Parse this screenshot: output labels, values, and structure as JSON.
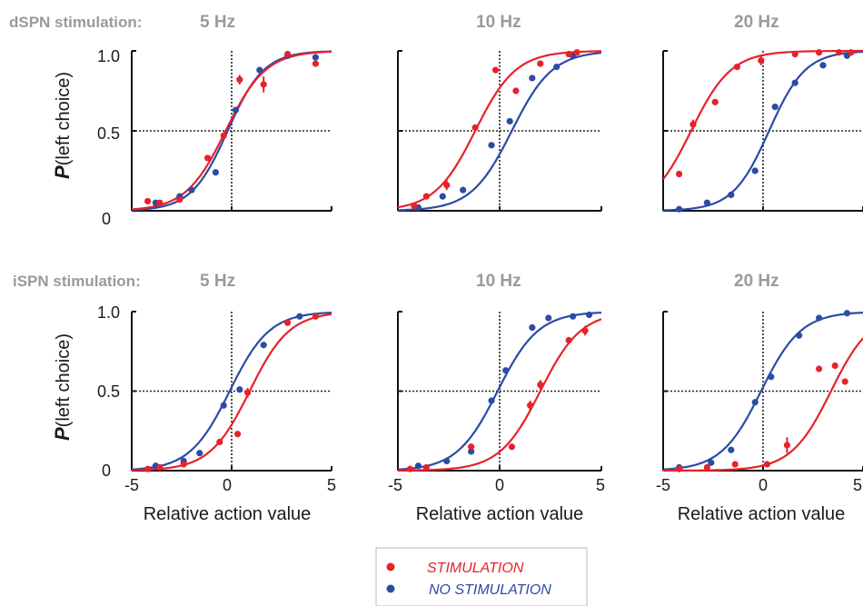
{
  "chart_data": {
    "type": "scatter",
    "row_titles": [
      "dSPN stimulation:",
      "iSPN stimulation:"
    ],
    "ylabel_bold": "P",
    "ylabel_rest": "(left choice)",
    "xlabel": "Relative action value",
    "xlim": [
      -5,
      5
    ],
    "ylim": [
      0,
      1
    ],
    "xticks": [
      "-5",
      "0",
      "5"
    ],
    "yticks": [
      "0",
      "0.5",
      "1.0"
    ],
    "legend": {
      "position": "bottom-center",
      "entries": [
        {
          "label": "STIMULATION",
          "color": "#e8212a"
        },
        {
          "label": "NO STIMULATION",
          "color": "#2b4ba6"
        }
      ]
    },
    "colors": {
      "stimulation": "#e8212a",
      "no_stimulation": "#2b4ba6"
    },
    "panels": [
      {
        "row": "dSPN",
        "freq": "5 Hz",
        "fits": {
          "stimulation": {
            "mid": -0.3,
            "slope": 1.0
          },
          "no_stimulation": {
            "mid": -0.2,
            "slope": 1.1
          }
        },
        "stimulation_points": {
          "x": [
            -4.2,
            -3.6,
            -2.6,
            -1.2,
            -0.4,
            0.4,
            1.6,
            2.8,
            4.2
          ],
          "y": [
            0.06,
            0.05,
            0.07,
            0.33,
            0.47,
            0.82,
            0.79,
            0.98,
            0.92
          ],
          "err": [
            0,
            0,
            0,
            0,
            0,
            0.03,
            0.05,
            0,
            0
          ]
        },
        "no_stimulation_points": {
          "x": [
            -3.8,
            -2.6,
            -2.0,
            -0.8,
            0.2,
            1.4,
            2.8,
            4.2
          ],
          "y": [
            0.05,
            0.09,
            0.13,
            0.24,
            0.63,
            0.88,
            0.97,
            0.96
          ],
          "err": [
            0,
            0,
            0,
            0,
            0,
            0,
            0,
            0
          ]
        }
      },
      {
        "row": "dSPN",
        "freq": "10 Hz",
        "fits": {
          "stimulation": {
            "mid": -1.2,
            "slope": 1.0
          },
          "no_stimulation": {
            "mid": 0.6,
            "slope": 1.0
          }
        },
        "stimulation_points": {
          "x": [
            -4.2,
            -3.6,
            -2.6,
            -1.2,
            -0.2,
            0.8,
            2.0,
            3.4,
            3.8
          ],
          "y": [
            0.03,
            0.09,
            0.16,
            0.52,
            0.88,
            0.75,
            0.92,
            0.98,
            0.99
          ],
          "err": [
            0,
            0,
            0.03,
            0,
            0,
            0,
            0,
            0,
            0
          ]
        },
        "no_stimulation_points": {
          "x": [
            -4.0,
            -2.8,
            -1.8,
            -0.4,
            0.5,
            1.6,
            2.8,
            3.6
          ],
          "y": [
            0.02,
            0.09,
            0.13,
            0.41,
            0.56,
            0.83,
            0.9,
            0.97
          ],
          "err": [
            0,
            0,
            0,
            0,
            0,
            0,
            0,
            0
          ]
        }
      },
      {
        "row": "dSPN",
        "freq": "20 Hz",
        "fits": {
          "stimulation": {
            "mid": -3.6,
            "slope": 1.0
          },
          "no_stimulation": {
            "mid": 0.3,
            "slope": 1.1
          }
        },
        "stimulation_points": {
          "x": [
            -4.2,
            -3.5,
            -2.4,
            -1.3,
            -0.1,
            1.6,
            2.8,
            3.8,
            4.4
          ],
          "y": [
            0.23,
            0.54,
            0.68,
            0.9,
            0.94,
            0.98,
            0.99,
            0.99,
            0.99
          ],
          "err": [
            0,
            0.03,
            0,
            0,
            0.03,
            0,
            0,
            0,
            0
          ]
        },
        "no_stimulation_points": {
          "x": [
            -4.2,
            -2.8,
            -1.6,
            -0.4,
            0.6,
            1.6,
            3.0,
            4.2
          ],
          "y": [
            0.01,
            0.05,
            0.1,
            0.25,
            0.65,
            0.8,
            0.91,
            0.97
          ],
          "err": [
            0,
            0,
            0,
            0,
            0,
            0,
            0,
            0
          ]
        }
      },
      {
        "row": "iSPN",
        "freq": "5 Hz",
        "fits": {
          "stimulation": {
            "mid": 0.9,
            "slope": 1.0
          },
          "no_stimulation": {
            "mid": -0.1,
            "slope": 1.0
          }
        },
        "stimulation_points": {
          "x": [
            -4.2,
            -3.6,
            -2.4,
            -0.6,
            0.3,
            0.8,
            2.8,
            4.2
          ],
          "y": [
            0.01,
            0.02,
            0.04,
            0.18,
            0.23,
            0.49,
            0.93,
            0.97
          ],
          "err": [
            0,
            0,
            0,
            0,
            0,
            0.03,
            0,
            0
          ]
        },
        "no_stimulation_points": {
          "x": [
            -3.8,
            -2.4,
            -1.6,
            -0.4,
            0.4,
            1.6,
            3.4
          ],
          "y": [
            0.03,
            0.06,
            0.11,
            0.41,
            0.51,
            0.79,
            0.97
          ],
          "err": [
            0,
            0,
            0,
            0,
            0,
            0,
            0
          ]
        }
      },
      {
        "row": "iSPN",
        "freq": "10 Hz",
        "fits": {
          "stimulation": {
            "mid": 2.0,
            "slope": 1.0
          },
          "no_stimulation": {
            "mid": -0.1,
            "slope": 1.0
          }
        },
        "stimulation_points": {
          "x": [
            -4.4,
            -3.6,
            -1.4,
            0.6,
            1.5,
            2.0,
            3.4,
            4.2
          ],
          "y": [
            0.01,
            0.02,
            0.15,
            0.15,
            0.41,
            0.54,
            0.82,
            0.88
          ],
          "err": [
            0,
            0,
            0,
            0,
            0.03,
            0.03,
            0,
            0.03
          ]
        },
        "no_stimulation_points": {
          "x": [
            -4.0,
            -2.6,
            -1.4,
            -0.4,
            0.3,
            1.6,
            2.4,
            3.6,
            4.4
          ],
          "y": [
            0.03,
            0.06,
            0.12,
            0.44,
            0.63,
            0.9,
            0.96,
            0.97,
            0.98
          ],
          "err": [
            0,
            0,
            0,
            0,
            0,
            0,
            0,
            0,
            0
          ]
        }
      },
      {
        "row": "iSPN",
        "freq": "20 Hz",
        "fits": {
          "stimulation": {
            "mid": 3.4,
            "slope": 1.0
          },
          "no_stimulation": {
            "mid": -0.1,
            "slope": 1.0
          }
        },
        "stimulation_points": {
          "x": [
            -4.2,
            -2.8,
            -1.4,
            0.2,
            1.2,
            2.8,
            3.6,
            4.1
          ],
          "y": [
            0.01,
            0.02,
            0.04,
            0.04,
            0.16,
            0.64,
            0.66,
            0.56
          ],
          "err": [
            0,
            0,
            0,
            0,
            0.05,
            0,
            0,
            0
          ]
        },
        "no_stimulation_points": {
          "x": [
            -4.2,
            -2.6,
            -1.6,
            -0.4,
            0.4,
            1.8,
            2.8,
            4.2
          ],
          "y": [
            0.02,
            0.05,
            0.13,
            0.43,
            0.59,
            0.85,
            0.96,
            0.99
          ],
          "err": [
            0,
            0,
            0,
            0,
            0,
            0,
            0,
            0
          ]
        }
      }
    ]
  }
}
